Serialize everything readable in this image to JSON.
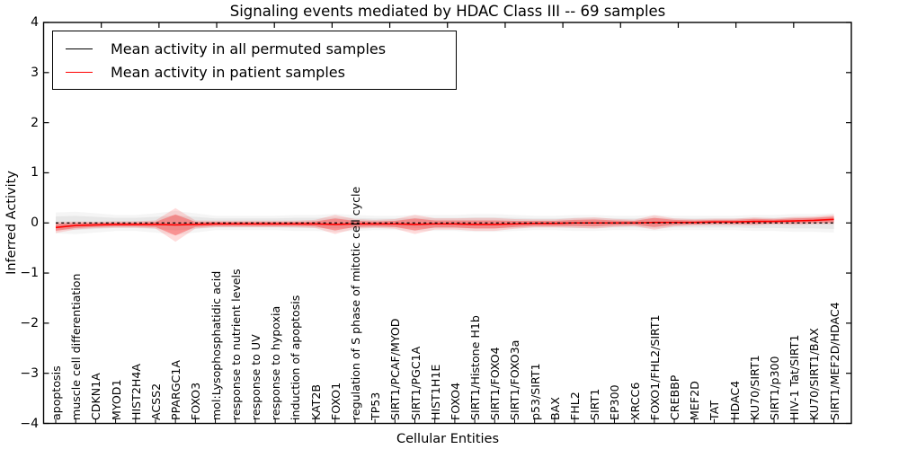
{
  "figure": {
    "title": "Signaling events mediated by HDAC Class III -- 69 samples",
    "xlabel": "Cellular Entities",
    "ylabel": "Inferred Activity"
  },
  "legend": {
    "items": [
      {
        "label": "Mean activity in all permuted samples",
        "color": "#000000"
      },
      {
        "label": "Mean activity in patient samples",
        "color": "#ff0000"
      }
    ]
  },
  "chart_data": {
    "type": "line",
    "title": "Signaling events mediated by HDAC Class III -- 69 samples",
    "xlabel": "Cellular Entities",
    "ylabel": "Inferred Activity",
    "ylim": [
      -4,
      4
    ],
    "yticks": [
      "4",
      "3",
      "2",
      "1",
      "0",
      "−1",
      "−2",
      "−3",
      "−4"
    ],
    "ytick_values": [
      4,
      3,
      2,
      1,
      0,
      -1,
      -2,
      -3,
      -4
    ],
    "legend_position": "upper left",
    "grid": false,
    "categories": [
      "apoptosis",
      "muscle cell differentiation",
      "CDKN1A",
      "MYOD1",
      "HIST2H4A",
      "ACSS2",
      "PPARGC1A",
      "FOXO3",
      "mol:Lysophosphatidic acid",
      "response to nutrient levels",
      "response to UV",
      "response to hypoxia",
      "induction of apoptosis",
      "KAT2B",
      "FOXO1",
      "regulation of S phase of mitotic cell cycle",
      "TP53",
      "SIRT1/PCAF/MYOD",
      "SIRT1/PGC1A",
      "HIST1H1E",
      "FOXO4",
      "SIRT1/Histone H1b",
      "SIRT1/FOXO4",
      "SIRT1/FOXO3a",
      "p53/SIRT1",
      "BAX",
      "FHL2",
      "SIRT1",
      "EP300",
      "XRCC6",
      "FOXO1/FHL2/SIRT1",
      "CREBBP",
      "MEF2D",
      "TAT",
      "HDAC4",
      "KU70/SIRT1",
      "SIRT1/p300",
      "HIV-1 Tat/SIRT1",
      "KU70/SIRT1/BAX",
      "SIRT1/MEF2D/HDAC4"
    ],
    "series": [
      {
        "name": "Mean activity in all permuted samples",
        "color": "#000000",
        "line_style": "dashed",
        "values": [
          0,
          0,
          0,
          0,
          0,
          0,
          0,
          0,
          0,
          0,
          0,
          0,
          0,
          0,
          0,
          0,
          0,
          0,
          0,
          0,
          0,
          0,
          0,
          0,
          0,
          0,
          0,
          0,
          0,
          0,
          0,
          0,
          0,
          0,
          0,
          0,
          0,
          0,
          0,
          0
        ],
        "band_halfwidth": [
          0.13,
          0.14,
          0.12,
          0.1,
          0.1,
          0.12,
          0.15,
          0.12,
          0.09,
          0.09,
          0.09,
          0.09,
          0.1,
          0.1,
          0.11,
          0.1,
          0.09,
          0.09,
          0.1,
          0.1,
          0.1,
          0.11,
          0.11,
          0.1,
          0.09,
          0.09,
          0.1,
          0.1,
          0.09,
          0.09,
          0.1,
          0.09,
          0.09,
          0.09,
          0.09,
          0.1,
          0.1,
          0.11,
          0.11,
          0.12
        ],
        "band_color": "#aaaaaa"
      },
      {
        "name": "Mean activity in patient samples",
        "color": "#ff0000",
        "line_style": "solid",
        "values": [
          -0.09,
          -0.05,
          -0.04,
          -0.03,
          -0.03,
          -0.03,
          -0.04,
          -0.03,
          -0.02,
          -0.02,
          -0.02,
          -0.02,
          -0.02,
          -0.02,
          -0.03,
          -0.02,
          -0.02,
          -0.02,
          -0.03,
          -0.02,
          -0.02,
          -0.03,
          -0.03,
          -0.02,
          -0.01,
          -0.01,
          0,
          0,
          0,
          0,
          0.01,
          0.01,
          0.01,
          0.02,
          0.02,
          0.03,
          0.03,
          0.04,
          0.05,
          0.07
        ],
        "band_halfwidth": [
          0.07,
          0.05,
          0.04,
          0.04,
          0.04,
          0.05,
          0.21,
          0.05,
          0.04,
          0.04,
          0.04,
          0.04,
          0.04,
          0.05,
          0.12,
          0.06,
          0.05,
          0.06,
          0.12,
          0.07,
          0.07,
          0.08,
          0.08,
          0.06,
          0.05,
          0.05,
          0.06,
          0.07,
          0.05,
          0.04,
          0.09,
          0.05,
          0.04,
          0.04,
          0.04,
          0.05,
          0.04,
          0.05,
          0.05,
          0.06
        ],
        "band_color": "#ff0000"
      }
    ]
  }
}
